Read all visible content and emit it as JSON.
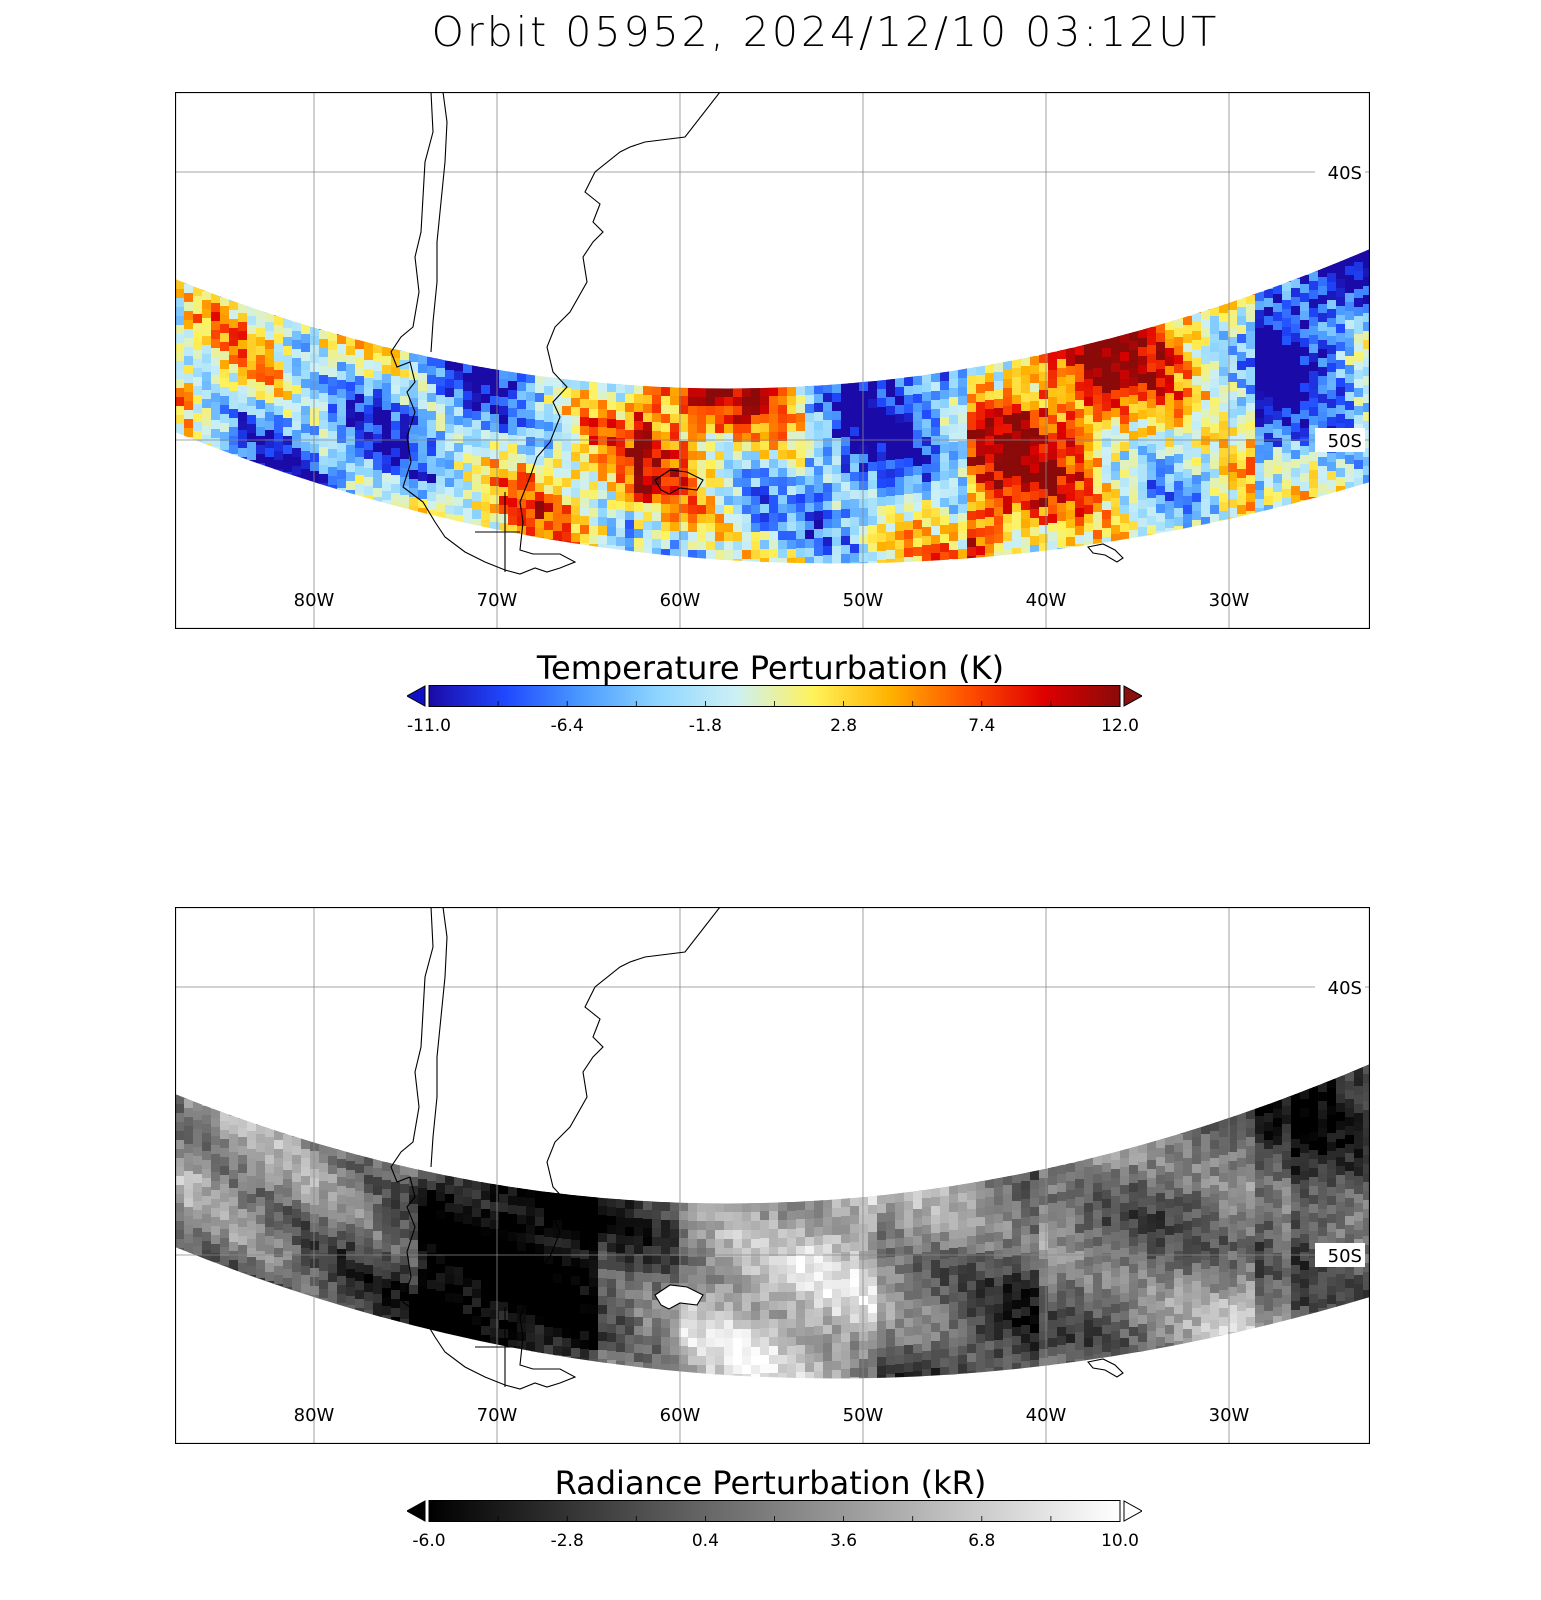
{
  "title": "Orbit 05952, 2024/12/10 03:12UT",
  "panels": [
    {
      "id": "temperature",
      "longitude_labels": [
        "80W",
        "70W",
        "60W",
        "50W",
        "40W",
        "30W"
      ],
      "latitude_labels": [
        "40S",
        "50S"
      ],
      "colorbar": {
        "title": "Temperature Perturbation (K)",
        "min": -11.0,
        "max": 12.0,
        "tick_labels": [
          "-11.0",
          "-6.4",
          "-1.8",
          "2.8",
          "7.4",
          "12.0"
        ],
        "colormap": [
          "#1a0aa8",
          "#1f49ff",
          "#4b9bff",
          "#8fd6ff",
          "#cdf0f5",
          "#fff25a",
          "#ffb200",
          "#ff5000",
          "#e00000",
          "#8a0a0a"
        ],
        "under_color": "#1010c8",
        "over_color": "#8a1010"
      }
    },
    {
      "id": "radiance",
      "longitude_labels": [
        "80W",
        "70W",
        "60W",
        "50W",
        "40W",
        "30W"
      ],
      "latitude_labels": [
        "40S",
        "50S"
      ],
      "colorbar": {
        "title": "Radiance Perturbation (kR)",
        "min": -6.0,
        "max": 10.0,
        "tick_labels": [
          "-6.0",
          "-2.8",
          "0.4",
          "3.6",
          "6.8",
          "10.0"
        ],
        "colormap": [
          "#000000",
          "#ffffff"
        ],
        "under_color": "#000000",
        "over_color": "#ffffff"
      }
    }
  ]
}
